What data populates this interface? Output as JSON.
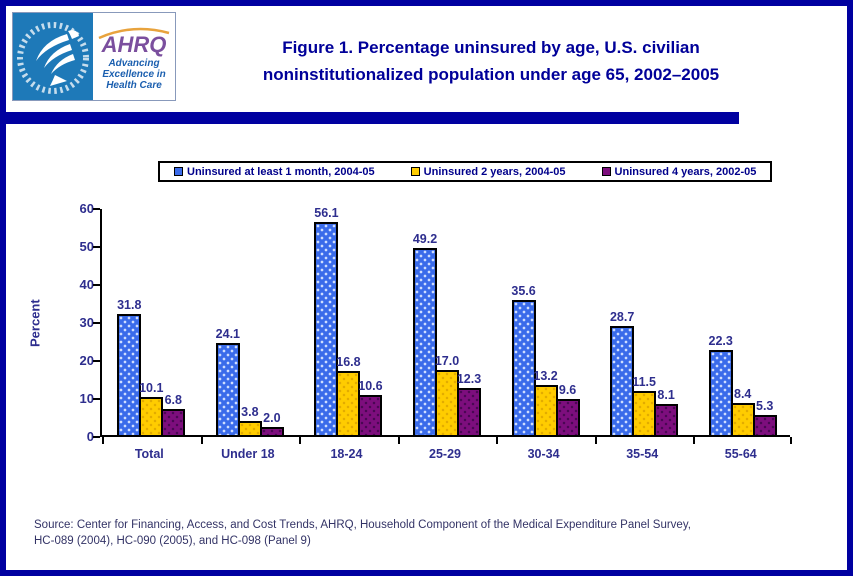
{
  "header": {
    "title_line1": "Figure 1. Percentage uninsured by age, U.S. civilian",
    "title_line2": "noninstitutionalized population under age 65, 2002–2005",
    "logo": {
      "ahrq_text": "AHRQ",
      "tagline_line1": "Advancing",
      "tagline_line2": "Excellence in",
      "tagline_line3": "Health Care"
    }
  },
  "chart_data": {
    "type": "bar",
    "title": "Figure 1. Percentage uninsured by age, U.S. civilian noninstitutionalized population under age 65, 2002–2005",
    "xlabel": "",
    "ylabel": "Percent",
    "ylim": [
      0,
      60
    ],
    "yticks": [
      0,
      10,
      20,
      30,
      40,
      50,
      60
    ],
    "grid": false,
    "data_labels": true,
    "legend_position": "top",
    "categories": [
      "Total",
      "Under 18",
      "18-24",
      "25-29",
      "30-34",
      "35-54",
      "55-64"
    ],
    "series": [
      {
        "name": "Uninsured at least 1 month, 2004-05",
        "color": "#3A6BEA",
        "values": [
          31.8,
          24.1,
          56.1,
          49.2,
          35.6,
          28.7,
          22.3
        ]
      },
      {
        "name": "Uninsured 2 years, 2004-05",
        "color": "#FFCC00",
        "values": [
          10.1,
          3.8,
          16.8,
          17.0,
          13.2,
          11.5,
          8.4
        ]
      },
      {
        "name": "Uninsured 4 years, 2002-05",
        "color": "#7D0E7D",
        "values": [
          6.8,
          2.0,
          10.6,
          12.3,
          9.6,
          8.1,
          5.3
        ]
      }
    ]
  },
  "source": {
    "line1": "Source: Center for Financing, Access, and Cost Trends, AHRQ, Household Component of the Medical Expenditure Panel Survey,",
    "line2": "HC-089 (2004), HC-090 (2005), and HC-098 (Panel 9)"
  },
  "colors": {
    "frame_navy": "#0000A0",
    "title_text": "#000099",
    "chart_text": "#2E2E8E",
    "legend_text": "#00008B",
    "source_text": "#333366",
    "hhs_logo_blue": "#1E79B8",
    "ahrq_purple": "#7B4F9E",
    "ahrq_blue": "#1B5FAF",
    "ahrq_arc_orange": "#E8A33D"
  }
}
